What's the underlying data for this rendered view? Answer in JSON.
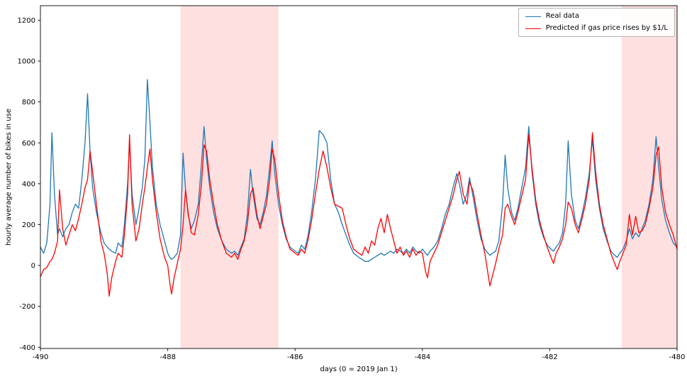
{
  "chart_data": {
    "type": "line",
    "title": "",
    "xlabel": "days (0 = 2019 Jan 1)",
    "ylabel": "hourly average number of bikes in use",
    "xlim": [
      -490,
      -480
    ],
    "ylim": [
      -406,
      1271
    ],
    "x_ticks": [
      -490,
      -488,
      -486,
      -484,
      -482,
      -480
    ],
    "y_ticks": [
      -400,
      -200,
      0,
      200,
      400,
      600,
      800,
      1000,
      1200
    ],
    "grid": false,
    "legend_position": "top-right",
    "background": "#ffffff",
    "axis_color": "#000000",
    "shaded_regions": [
      {
        "x0": -487.8,
        "x1": -486.26,
        "color": "#ff0000",
        "alpha": 0.12
      },
      {
        "x0": -480.87,
        "x1": -480.0,
        "color": "#ff0000",
        "alpha": 0.12
      }
    ],
    "x": [
      -490.0,
      -489.95,
      -489.9,
      -489.85,
      -489.82,
      -489.78,
      -489.73,
      -489.7,
      -489.65,
      -489.6,
      -489.55,
      -489.5,
      -489.45,
      -489.4,
      -489.35,
      -489.3,
      -489.26,
      -489.22,
      -489.18,
      -489.12,
      -489.05,
      -489.0,
      -488.95,
      -488.92,
      -488.88,
      -488.82,
      -488.78,
      -488.72,
      -488.68,
      -488.63,
      -488.6,
      -488.56,
      -488.5,
      -488.45,
      -488.4,
      -488.36,
      -488.32,
      -488.28,
      -488.24,
      -488.18,
      -488.12,
      -488.05,
      -488.0,
      -487.97,
      -487.94,
      -487.9,
      -487.85,
      -487.8,
      -487.76,
      -487.72,
      -487.68,
      -487.63,
      -487.58,
      -487.52,
      -487.47,
      -487.43,
      -487.39,
      -487.34,
      -487.28,
      -487.22,
      -487.15,
      -487.08,
      -487.0,
      -486.95,
      -486.9,
      -486.85,
      -486.8,
      -486.75,
      -486.7,
      -486.66,
      -486.6,
      -486.55,
      -486.5,
      -486.45,
      -486.4,
      -486.36,
      -486.32,
      -486.26,
      -486.2,
      -486.14,
      -486.08,
      -486.0,
      -485.95,
      -485.9,
      -485.85,
      -485.8,
      -485.74,
      -485.68,
      -485.62,
      -485.56,
      -485.5,
      -485.44,
      -485.38,
      -485.32,
      -485.26,
      -485.2,
      -485.14,
      -485.08,
      -485.0,
      -484.95,
      -484.9,
      -484.85,
      -484.8,
      -484.75,
      -484.7,
      -484.65,
      -484.6,
      -484.55,
      -484.5,
      -484.45,
      -484.4,
      -484.35,
      -484.3,
      -484.25,
      -484.2,
      -484.15,
      -484.1,
      -484.05,
      -484.0,
      -483.95,
      -483.92,
      -483.88,
      -483.82,
      -483.76,
      -483.7,
      -483.64,
      -483.58,
      -483.52,
      -483.46,
      -483.42,
      -483.36,
      -483.3,
      -483.26,
      -483.2,
      -483.14,
      -483.08,
      -483.02,
      -482.97,
      -482.94,
      -482.9,
      -482.85,
      -482.8,
      -482.74,
      -482.7,
      -482.66,
      -482.6,
      -482.55,
      -482.5,
      -482.44,
      -482.38,
      -482.33,
      -482.28,
      -482.22,
      -482.16,
      -482.1,
      -482.04,
      -481.98,
      -481.94,
      -481.9,
      -481.85,
      -481.8,
      -481.75,
      -481.71,
      -481.66,
      -481.6,
      -481.55,
      -481.5,
      -481.44,
      -481.38,
      -481.33,
      -481.28,
      -481.22,
      -481.16,
      -481.1,
      -481.04,
      -480.98,
      -480.94,
      -480.9,
      -480.85,
      -480.8,
      -480.75,
      -480.7,
      -480.65,
      -480.6,
      -480.55,
      -480.5,
      -480.44,
      -480.38,
      -480.33,
      -480.29,
      -480.24,
      -480.18,
      -480.12,
      -480.06,
      -480.0
    ],
    "series": [
      {
        "name": "Real data",
        "color": "#1f77b4",
        "values": [
          90,
          60,
          110,
          300,
          650,
          350,
          150,
          180,
          140,
          180,
          200,
          260,
          300,
          280,
          420,
          600,
          840,
          560,
          380,
          260,
          160,
          110,
          90,
          80,
          70,
          60,
          110,
          90,
          200,
          400,
          600,
          350,
          200,
          280,
          380,
          520,
          910,
          700,
          480,
          300,
          200,
          120,
          60,
          40,
          30,
          40,
          60,
          150,
          550,
          370,
          250,
          180,
          220,
          300,
          500,
          680,
          520,
          380,
          260,
          180,
          120,
          80,
          60,
          70,
          50,
          90,
          130,
          250,
          470,
          350,
          230,
          200,
          260,
          340,
          480,
          610,
          450,
          300,
          200,
          130,
          90,
          70,
          60,
          100,
          80,
          140,
          260,
          420,
          660,
          640,
          600,
          420,
          300,
          260,
          200,
          150,
          100,
          60,
          40,
          30,
          20,
          20,
          30,
          40,
          50,
          60,
          50,
          60,
          70,
          60,
          80,
          70,
          60,
          80,
          60,
          90,
          70,
          60,
          80,
          60,
          50,
          70,
          90,
          120,
          180,
          250,
          300,
          380,
          450,
          400,
          300,
          350,
          430,
          330,
          220,
          130,
          80,
          60,
          50,
          60,
          70,
          120,
          300,
          540,
          380,
          260,
          220,
          280,
          380,
          480,
          680,
          460,
          300,
          200,
          140,
          100,
          80,
          70,
          90,
          110,
          160,
          300,
          610,
          350,
          220,
          180,
          240,
          330,
          450,
          620,
          420,
          280,
          180,
          120,
          70,
          50,
          40,
          60,
          80,
          120,
          180,
          130,
          160,
          140,
          180,
          220,
          300,
          420,
          630,
          480,
          320,
          220,
          160,
          110,
          90
        ]
      },
      {
        "name": "Predicted if gas price rises by $1/L",
        "color": "#ff0000",
        "values": [
          -55,
          -20,
          -10,
          20,
          30,
          60,
          120,
          370,
          180,
          100,
          150,
          200,
          170,
          230,
          300,
          380,
          420,
          560,
          460,
          300,
          120,
          60,
          -40,
          -150,
          -60,
          20,
          60,
          40,
          150,
          350,
          640,
          300,
          120,
          180,
          300,
          380,
          480,
          570,
          420,
          260,
          130,
          40,
          0,
          -80,
          -140,
          -60,
          10,
          80,
          200,
          370,
          260,
          160,
          150,
          250,
          400,
          590,
          560,
          420,
          300,
          200,
          120,
          60,
          40,
          60,
          30,
          80,
          120,
          200,
          350,
          380,
          250,
          180,
          240,
          300,
          420,
          570,
          520,
          350,
          220,
          140,
          80,
          60,
          50,
          80,
          60,
          120,
          220,
          350,
          470,
          560,
          480,
          380,
          300,
          290,
          280,
          200,
          130,
          80,
          60,
          50,
          90,
          60,
          120,
          100,
          180,
          230,
          160,
          250,
          180,
          120,
          60,
          90,
          50,
          70,
          40,
          80,
          50,
          70,
          60,
          -30,
          -60,
          20,
          60,
          100,
          160,
          220,
          280,
          340,
          420,
          460,
          350,
          300,
          410,
          360,
          250,
          150,
          60,
          -40,
          -100,
          -50,
          10,
          80,
          150,
          280,
          300,
          240,
          200,
          260,
          340,
          420,
          640,
          480,
          320,
          220,
          150,
          90,
          40,
          10,
          60,
          90,
          130,
          200,
          310,
          280,
          200,
          160,
          220,
          300,
          420,
          650,
          460,
          300,
          200,
          130,
          60,
          10,
          -20,
          20,
          60,
          100,
          250,
          150,
          240,
          160,
          170,
          200,
          280,
          380,
          540,
          580,
          380,
          260,
          200,
          150,
          80
        ]
      }
    ]
  }
}
